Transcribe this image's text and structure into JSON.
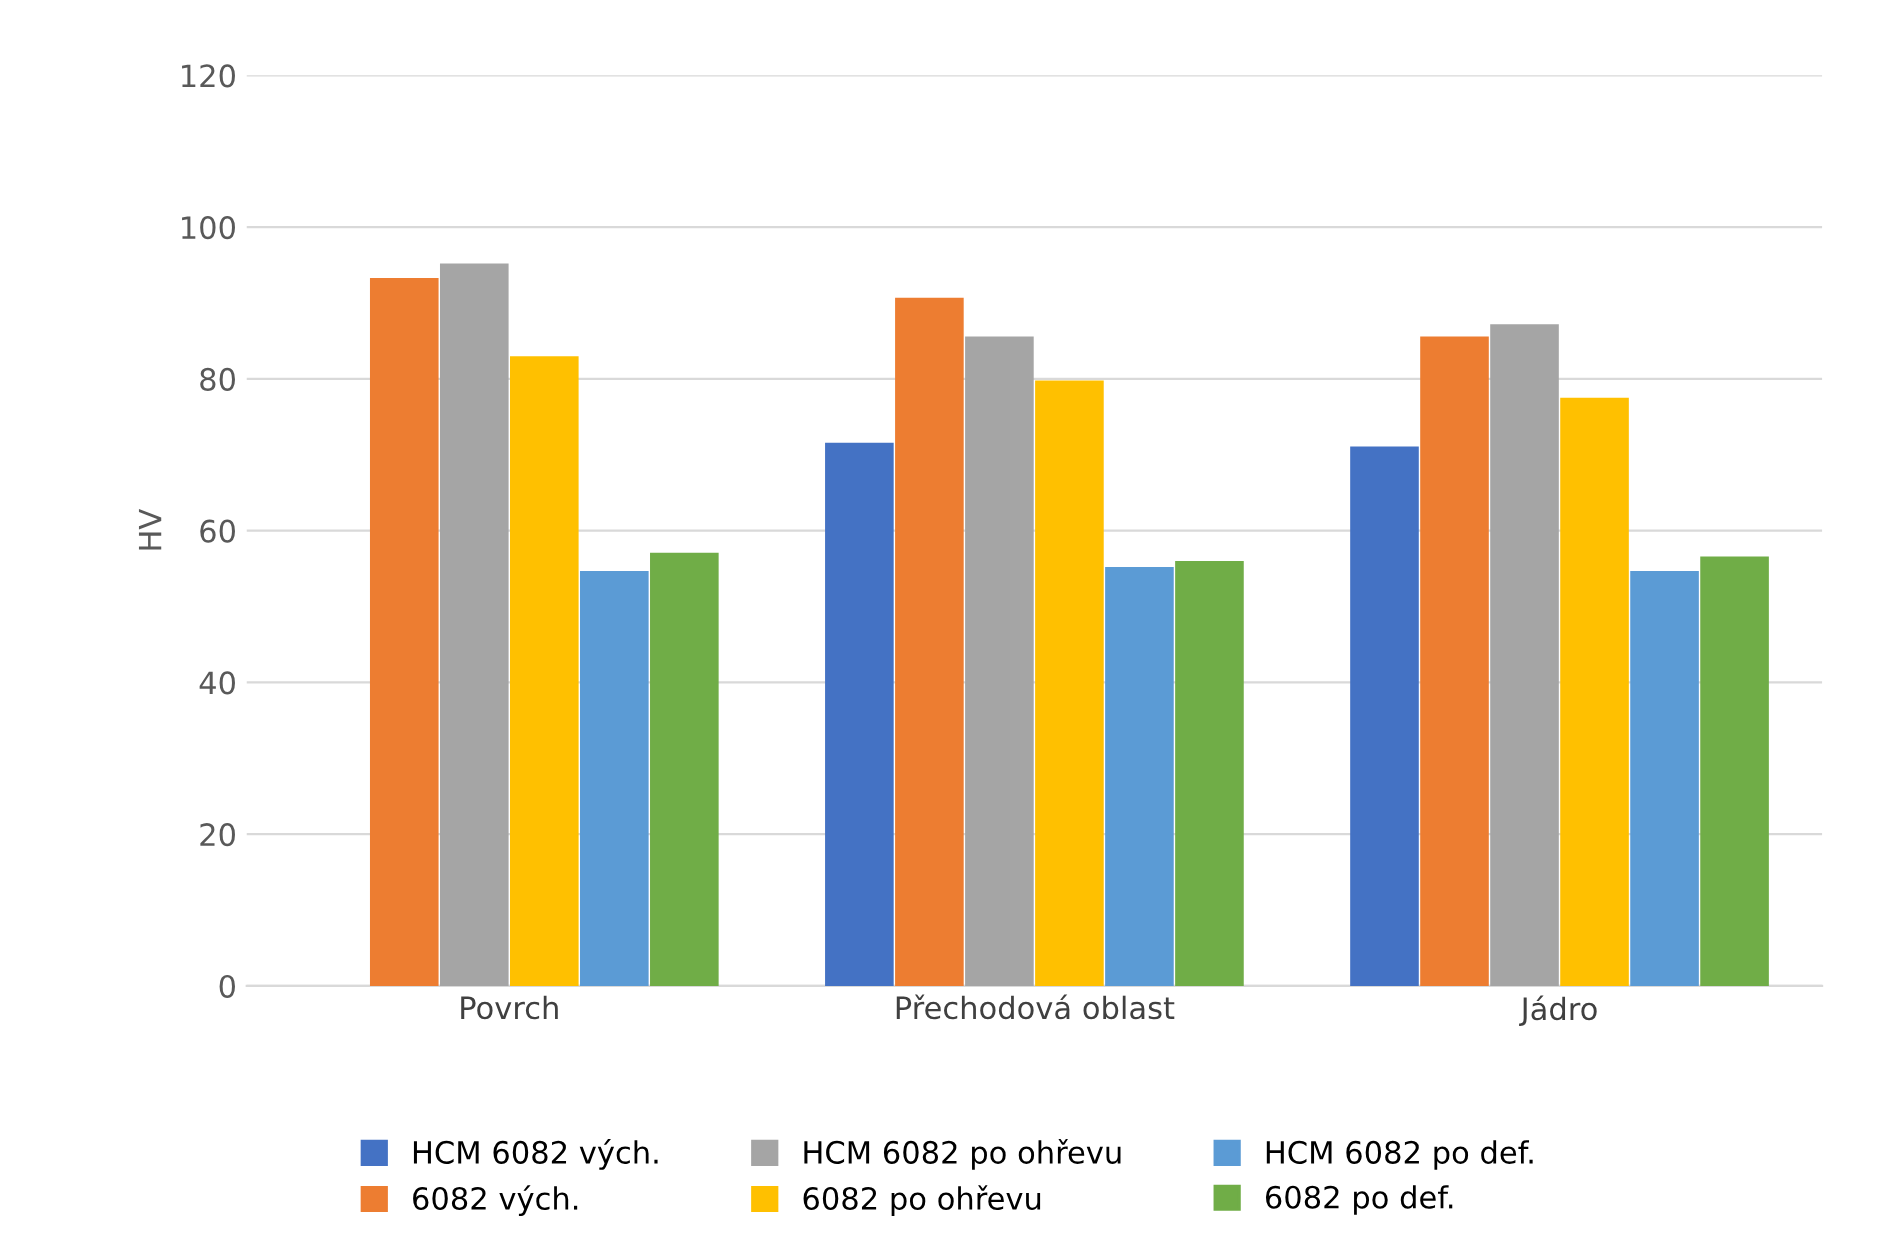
{
  "chart_data": {
    "type": "bar",
    "ylabel": "HV",
    "categories": [
      "Povrch",
      "Přechodová oblast",
      "Jádro"
    ],
    "series": [
      {
        "name": "HCM 6082 vých.",
        "color": "#4472c4",
        "values": [
          null,
          71.6,
          71.1
        ]
      },
      {
        "name": "6082 vých.",
        "color": "#ed7d31",
        "values": [
          93.3,
          90.7,
          85.6
        ]
      },
      {
        "name": "HCM 6082 po ohřevu",
        "color": "#a5a5a5",
        "values": [
          95.2,
          85.6,
          87.2
        ]
      },
      {
        "name": "6082 po ohřevu",
        "color": "#ffc000",
        "values": [
          83.0,
          79.8,
          77.5
        ]
      },
      {
        "name": "HCM 6082 po def.",
        "color": "#5b9bd5",
        "values": [
          54.7,
          55.2,
          54.7
        ]
      },
      {
        "name": "6082 po def.",
        "color": "#70ad47",
        "values": [
          57.1,
          56.0,
          56.6
        ]
      }
    ],
    "ylim": [
      0,
      120
    ],
    "yticks": [
      0,
      20,
      40,
      60,
      80,
      100,
      120
    ],
    "grid": "y",
    "legend": "bottom"
  }
}
